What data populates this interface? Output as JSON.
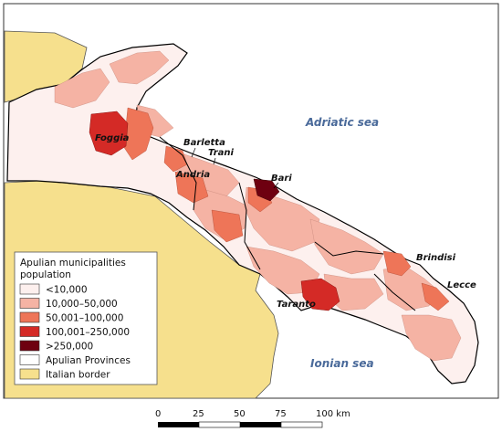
{
  "seas": {
    "adriatic": "Adriatic sea",
    "ionian": "Ionian sea"
  },
  "cities": {
    "foggia": "Foggia",
    "barletta": "Barletta",
    "trani": "Trani",
    "andria": "Andria",
    "bari": "Bari",
    "brindisi": "Brindisi",
    "lecce": "Lecce",
    "taranto": "Taranto"
  },
  "legend": {
    "title_line1": "Apulian municipalities",
    "title_line2": "population",
    "items": [
      {
        "label": "<10,000",
        "color": "#fdf0ee"
      },
      {
        "label": "10,000–50,000",
        "color": "#f5b3a4"
      },
      {
        "label": "50,001–100,000",
        "color": "#ee7558"
      },
      {
        "label": "100,001–250,000",
        "color": "#d42a26"
      },
      {
        "label": ">250,000",
        "color": "#6e0010"
      },
      {
        "label": "Apulian Provinces",
        "color": "#ffffff"
      },
      {
        "label": "Italian border",
        "color": "#f6e08d"
      }
    ]
  },
  "scale": {
    "ticks": [
      "0",
      "25",
      "50",
      "75",
      "100 km"
    ]
  },
  "colors": {
    "land": "#f6e08d",
    "sea": "#ffffff",
    "small": "#fdf0ee",
    "medium": "#f5b3a4",
    "large": "#ee7558",
    "city": "#d42a26",
    "metro": "#6e0010"
  }
}
